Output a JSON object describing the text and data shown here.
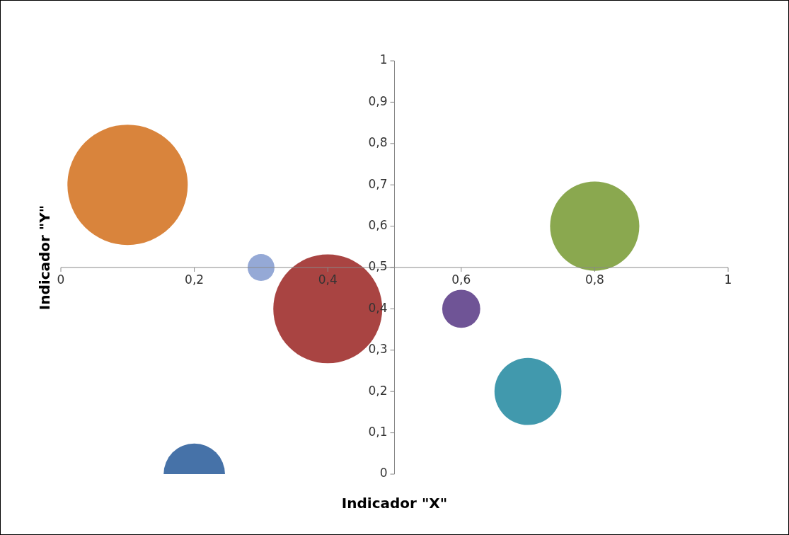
{
  "chart_data": {
    "type": "bubble",
    "xlabel": "Indicador \"X\"",
    "ylabel": "Indicador \"Y\"",
    "x": [
      0.1,
      0.3,
      0.4,
      0.6,
      0.7,
      0.8,
      0.2
    ],
    "values": [
      0.7,
      0.5,
      0.4,
      0.4,
      0.2,
      0.6,
      0
    ],
    "sizes": [
      1,
      0.05,
      0.82,
      0.1,
      0.31,
      0.55,
      0.26
    ],
    "colors": [
      "#d9843c",
      "#95a9d6",
      "#a94442",
      "#6f5496",
      "#4199ad",
      "#8aa84f",
      "#4672a8"
    ],
    "xlim": [
      0,
      1
    ],
    "xticks": [
      {
        "value": 0,
        "label": "0"
      },
      {
        "value": 0.2,
        "label": "0,2"
      },
      {
        "value": 0.4,
        "label": "0,4"
      },
      {
        "value": 0.6,
        "label": "0,6"
      },
      {
        "value": 0.8,
        "label": "0,8"
      },
      {
        "value": 1,
        "label": "1"
      }
    ],
    "ylim": [
      0,
      1
    ],
    "yticks": [
      {
        "value": 0,
        "label": "0"
      },
      {
        "value": 0.1,
        "label": "0,1"
      },
      {
        "value": 0.2,
        "label": "0,2"
      },
      {
        "value": 0.3,
        "label": "0,3"
      },
      {
        "value": 0.4,
        "label": "0,4"
      },
      {
        "value": 0.5,
        "label": "0,5"
      },
      {
        "value": 0.6,
        "label": "0,6"
      },
      {
        "value": 0.7,
        "label": "0,7"
      },
      {
        "value": 0.8,
        "label": "0,8"
      },
      {
        "value": 0.9,
        "label": "0,9"
      },
      {
        "value": 1,
        "label": "1"
      }
    ],
    "grid": false,
    "legend": false
  }
}
